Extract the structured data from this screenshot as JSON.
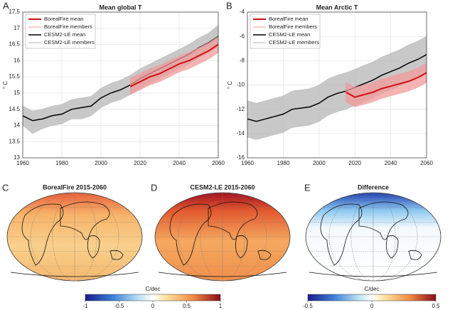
{
  "chart_data": [
    {
      "type": "line",
      "panel": "A",
      "title": "Mean global T",
      "ylabel": "° C",
      "x": [
        1960,
        1965,
        1970,
        1975,
        1980,
        1985,
        1990,
        1995,
        2000,
        2005,
        2010,
        2015,
        2020,
        2025,
        2030,
        2035,
        2040,
        2045,
        2050,
        2055,
        2060
      ],
      "xlim": [
        1960,
        2060
      ],
      "xticks": [
        1960,
        1980,
        2000,
        2020,
        2040,
        2060
      ],
      "ylim": [
        13,
        17.5
      ],
      "yticks": [
        13,
        13.5,
        14,
        14.5,
        15,
        15.5,
        16,
        16.5,
        17,
        17.5
      ],
      "grid": true,
      "legend": "upper left",
      "series": [
        {
          "name": "BorealFire mean",
          "color": "#d01010",
          "width": 2,
          "values": [
            null,
            null,
            null,
            null,
            null,
            null,
            null,
            null,
            null,
            null,
            null,
            15.2,
            15.35,
            15.5,
            15.6,
            15.75,
            15.9,
            16.0,
            16.15,
            16.3,
            16.5
          ]
        },
        {
          "name": "BorealFire members",
          "color": "#f29a9a",
          "band": true,
          "high": [
            null,
            null,
            null,
            null,
            null,
            null,
            null,
            null,
            null,
            null,
            null,
            15.45,
            15.6,
            15.75,
            15.85,
            16.0,
            16.15,
            16.25,
            16.4,
            16.55,
            16.75
          ],
          "low": [
            null,
            null,
            null,
            null,
            null,
            null,
            null,
            null,
            null,
            null,
            null,
            14.95,
            15.1,
            15.25,
            15.35,
            15.5,
            15.65,
            15.75,
            15.9,
            16.05,
            16.25
          ]
        },
        {
          "name": "CESM2-LE mean",
          "color": "#000000",
          "width": 1.5,
          "values": [
            14.3,
            14.15,
            14.2,
            14.3,
            14.35,
            14.5,
            14.55,
            14.6,
            14.85,
            15.0,
            15.1,
            15.25,
            15.45,
            15.6,
            15.75,
            15.9,
            16.05,
            16.2,
            16.4,
            16.55,
            16.75
          ]
        },
        {
          "name": "CESM2-LE members",
          "color": "#b5b5b5",
          "band": true,
          "high": [
            14.6,
            14.45,
            14.5,
            14.6,
            14.65,
            14.8,
            14.85,
            14.9,
            15.15,
            15.3,
            15.4,
            15.55,
            15.75,
            15.9,
            16.05,
            16.2,
            16.35,
            16.5,
            16.7,
            16.85,
            17.1
          ],
          "low": [
            14.0,
            13.75,
            13.9,
            14.0,
            14.05,
            14.2,
            14.2,
            14.3,
            14.55,
            14.7,
            14.8,
            14.95,
            15.15,
            15.3,
            15.45,
            15.6,
            15.75,
            15.9,
            16.1,
            16.25,
            16.45
          ]
        }
      ]
    },
    {
      "type": "line",
      "panel": "B",
      "title": "Mean Arctic T",
      "ylabel": "° C",
      "x": [
        1960,
        1965,
        1970,
        1975,
        1980,
        1985,
        1990,
        1995,
        2000,
        2005,
        2010,
        2015,
        2020,
        2025,
        2030,
        2035,
        2040,
        2045,
        2050,
        2055,
        2060
      ],
      "xlim": [
        1960,
        2060
      ],
      "xticks": [
        1960,
        1980,
        2000,
        2020,
        2040,
        2060
      ],
      "ylim": [
        -16,
        -4
      ],
      "yticks": [
        -16,
        -14,
        -12,
        -10,
        -8,
        -6,
        -4
      ],
      "grid": true,
      "legend": "upper left",
      "series": [
        {
          "name": "BorealFire mean",
          "color": "#d01010",
          "width": 2,
          "values": [
            null,
            null,
            null,
            null,
            null,
            null,
            null,
            null,
            null,
            null,
            null,
            -10.6,
            -11.0,
            -10.8,
            -10.6,
            -10.3,
            -10.1,
            -9.9,
            -9.7,
            -9.4,
            -9.0
          ]
        },
        {
          "name": "BorealFire members",
          "color": "#f29a9a",
          "band": true,
          "high": [
            null,
            null,
            null,
            null,
            null,
            null,
            null,
            null,
            null,
            null,
            null,
            -9.8,
            -10.2,
            -10.0,
            -9.8,
            -9.5,
            -9.3,
            -9.1,
            -8.9,
            -8.6,
            -8.2
          ],
          "low": [
            null,
            null,
            null,
            null,
            null,
            null,
            null,
            null,
            null,
            null,
            null,
            -11.4,
            -11.8,
            -11.6,
            -11.4,
            -11.1,
            -10.9,
            -10.7,
            -10.5,
            -10.2,
            -9.8
          ]
        },
        {
          "name": "CESM2-LE mean",
          "color": "#000000",
          "width": 1.5,
          "values": [
            -12.8,
            -13.0,
            -12.8,
            -12.6,
            -12.4,
            -12.0,
            -11.9,
            -11.8,
            -11.5,
            -11.0,
            -10.7,
            -10.5,
            -10.2,
            -9.9,
            -9.6,
            -9.2,
            -8.9,
            -8.6,
            -8.2,
            -7.9,
            -7.5
          ]
        },
        {
          "name": "CESM2-LE members",
          "color": "#b5b5b5",
          "band": true,
          "high": [
            -11.3,
            -11.5,
            -11.3,
            -11.1,
            -10.9,
            -10.5,
            -10.4,
            -10.3,
            -10.0,
            -9.5,
            -9.2,
            -9.0,
            -8.7,
            -8.4,
            -8.1,
            -7.7,
            -7.4,
            -7.1,
            -6.7,
            -6.4,
            -6.0
          ],
          "low": [
            -14.3,
            -14.5,
            -14.3,
            -14.1,
            -13.9,
            -13.5,
            -13.4,
            -13.3,
            -13.0,
            -12.5,
            -12.2,
            -12.0,
            -11.7,
            -11.4,
            -11.1,
            -10.7,
            -10.4,
            -10.1,
            -9.7,
            -9.4,
            -9.0
          ]
        }
      ]
    }
  ],
  "maps": [
    {
      "panel": "C",
      "title": "BorealFire 2015-2060",
      "style": "warm"
    },
    {
      "panel": "D",
      "title": "CESM2-LE 2015-2060",
      "style": "hot"
    },
    {
      "panel": "E",
      "title": "Difference",
      "style": "diff"
    }
  ],
  "colorbars": [
    {
      "label": "C/dec",
      "lim": [
        -1,
        1
      ],
      "ticks": [
        -1,
        -0.5,
        0,
        0.5,
        1
      ]
    },
    {
      "label": "C/dec",
      "lim": [
        -0.5,
        0.5
      ],
      "ticks": [
        -0.5,
        0,
        0.5
      ]
    }
  ]
}
